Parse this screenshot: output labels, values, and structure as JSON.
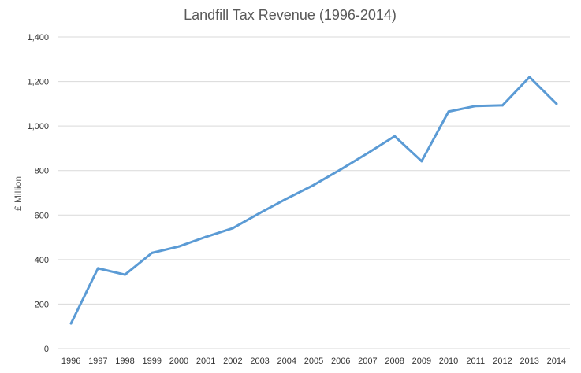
{
  "chart_data": {
    "type": "line",
    "title": "Landfill Tax Revenue (1996-2014)",
    "xlabel": "",
    "ylabel": "£ Million",
    "x": [
      "1996",
      "1997",
      "1998",
      "1999",
      "2000",
      "2001",
      "2002",
      "2003",
      "2004",
      "2005",
      "2006",
      "2007",
      "2008",
      "2009",
      "2010",
      "2011",
      "2012",
      "2013",
      "2014"
    ],
    "series": [
      {
        "values": [
          113,
          361,
          332,
          430,
          459,
          502,
          541,
          609,
          674,
          735,
          805,
          878,
          954,
          842,
          1065,
          1090,
          1093,
          1220,
          1100
        ],
        "color": "#5b9bd5"
      }
    ],
    "ylim": [
      0,
      1400
    ],
    "yticks": [
      0,
      200,
      400,
      600,
      800,
      1000,
      1200,
      1400
    ],
    "ytick_labels": [
      "0",
      "200",
      "400",
      "600",
      "800",
      "1,000",
      "1,200",
      "1,400"
    ],
    "grid": true,
    "legend": "none"
  }
}
